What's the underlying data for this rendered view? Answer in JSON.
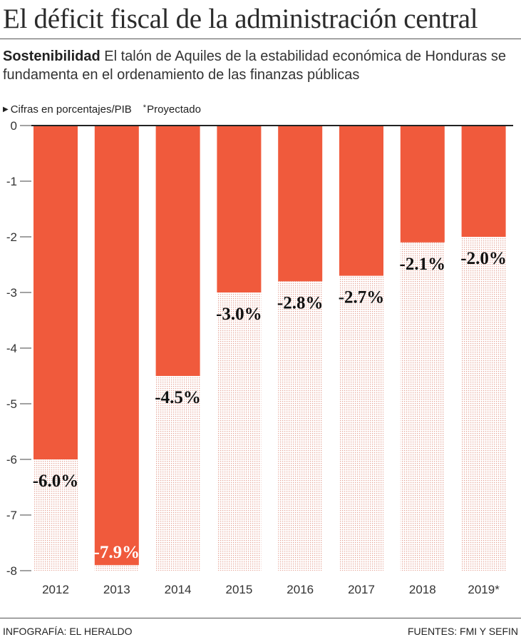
{
  "header": {
    "title": "El déficit fiscal de la administración central",
    "kicker": "Sostenibilidad",
    "subtitle": "El talón de Aquiles de la estabilidad económica de Honduras se fundamenta en el ordenamiento de las finanzas públicas"
  },
  "notes": {
    "units": "Cifras en porcentajes/PIB",
    "projected_marker": "*",
    "projected": "Proyectado"
  },
  "chart_data": {
    "type": "bar",
    "categories": [
      "2012",
      "2013",
      "2014",
      "2015",
      "2016",
      "2017",
      "2018",
      "2019*"
    ],
    "values": [
      -6.0,
      -7.9,
      -4.5,
      -3.0,
      -2.8,
      -2.7,
      -2.1,
      -2.0
    ],
    "data_labels": [
      "-6.0%",
      "-7.9%",
      "-4.5%",
      "-3.0%",
      "-2.8%",
      "-2.7%",
      "-2.1%",
      "-2.0%"
    ],
    "ylim": [
      -8,
      0
    ],
    "yticks": [
      0,
      -1,
      -2,
      -3,
      -4,
      -5,
      -6,
      -7,
      -8
    ],
    "grid": false,
    "colors": {
      "bar": "#f05a3c",
      "pattern": "#e5a497",
      "zero_line": "#222222",
      "label": "#111111"
    }
  },
  "footer": {
    "credit": "INFOGRAFÍA: EL HERALDO",
    "sources": "FUENTES: FMI Y SEFIN"
  }
}
